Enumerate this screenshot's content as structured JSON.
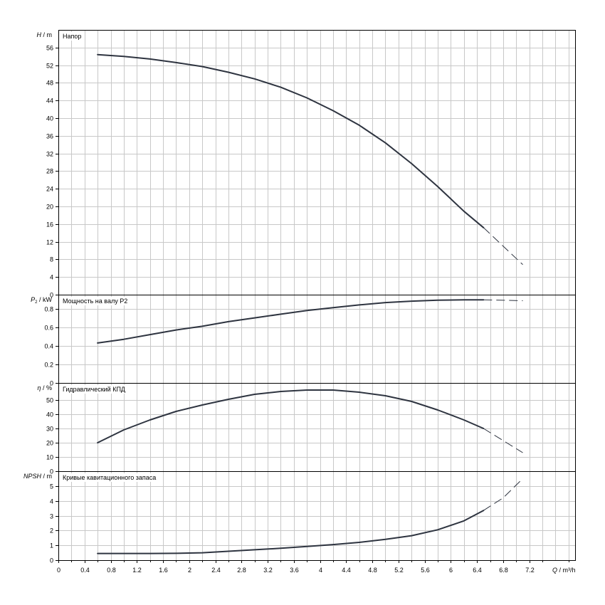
{
  "chart_data": {
    "type": "line",
    "x_axis": {
      "label_symbol": "Q",
      "label_unit": "/ m³/h",
      "range": [
        0,
        7.9
      ],
      "ticks": [
        0,
        0.4,
        0.8,
        1.2,
        1.6,
        2,
        2.4,
        2.8,
        3.2,
        3.6,
        4,
        4.4,
        4.8,
        5.2,
        5.6,
        6,
        6.4,
        6.8,
        7.2
      ],
      "tick_labels": [
        "0",
        "0.4",
        "0.8",
        "1.2",
        "1.6",
        "2",
        "2.4",
        "2.8",
        "3.2",
        "3.6",
        "4",
        "4.4",
        "4.8",
        "5.2",
        "5.6",
        "6",
        "6.4",
        "6.8",
        "7.2"
      ]
    },
    "panels": [
      {
        "name": "head",
        "title": "Напор",
        "ylabel_symbol": "H",
        "ylabel_unit": "/ m",
        "ylim": [
          0,
          60
        ],
        "yticks": [
          0,
          4,
          8,
          12,
          16,
          20,
          24,
          28,
          32,
          36,
          40,
          44,
          48,
          52,
          56
        ],
        "ytick_labels": [
          "0",
          "4",
          "8",
          "12",
          "16",
          "20",
          "24",
          "28",
          "32",
          "36",
          "40",
          "44",
          "48",
          "52",
          "56"
        ],
        "solid": {
          "x": [
            0.6,
            1.0,
            1.4,
            1.8,
            2.2,
            2.6,
            3.0,
            3.4,
            3.8,
            4.2,
            4.6,
            5.0,
            5.4,
            5.8,
            6.2,
            6.5
          ],
          "y": [
            54.4,
            54.0,
            53.4,
            52.6,
            51.7,
            50.4,
            48.9,
            47.0,
            44.6,
            41.7,
            38.4,
            34.4,
            29.7,
            24.5,
            18.9,
            15.2
          ]
        },
        "dashed": {
          "x": [
            6.5,
            7.1
          ],
          "y": [
            15.2,
            6.8
          ]
        }
      },
      {
        "name": "power",
        "title": "Мощность на валу P2",
        "ylabel_symbol": "P",
        "ylabel_sub": "2",
        "ylabel_unit": "/ kW",
        "ylim": [
          0,
          0.95
        ],
        "yticks": [
          0,
          0.2,
          0.4,
          0.6,
          0.8
        ],
        "ytick_labels": [
          "0",
          "0.2",
          "0.4",
          "0.6",
          "0.8"
        ],
        "solid": {
          "x": [
            0.6,
            1.0,
            1.4,
            1.8,
            2.2,
            2.6,
            3.0,
            3.4,
            3.8,
            4.2,
            4.6,
            5.0,
            5.4,
            5.8,
            6.2,
            6.5
          ],
          "y": [
            0.43,
            0.47,
            0.52,
            0.57,
            0.61,
            0.66,
            0.7,
            0.74,
            0.78,
            0.81,
            0.84,
            0.865,
            0.88,
            0.89,
            0.895,
            0.895
          ]
        },
        "dashed": {
          "x": [
            6.5,
            7.1
          ],
          "y": [
            0.895,
            0.885
          ]
        }
      },
      {
        "name": "efficiency",
        "title": "Гидравлический КПД",
        "ylabel_symbol": "η",
        "ylabel_unit": "/ %",
        "ylim": [
          0,
          62
        ],
        "yticks": [
          0,
          10,
          20,
          30,
          40,
          50
        ],
        "ytick_labels": [
          "0",
          "10",
          "20",
          "30",
          "40",
          "50"
        ],
        "solid": {
          "x": [
            0.6,
            1.0,
            1.4,
            1.8,
            2.2,
            2.6,
            3.0,
            3.4,
            3.8,
            4.2,
            4.6,
            5.0,
            5.4,
            5.8,
            6.2,
            6.5
          ],
          "y": [
            20,
            29,
            36,
            42,
            46.5,
            50.5,
            54,
            56,
            57,
            57,
            55.5,
            53,
            49,
            43,
            36,
            30
          ]
        },
        "dashed": {
          "x": [
            6.5,
            7.1
          ],
          "y": [
            30,
            13
          ]
        }
      },
      {
        "name": "npsh",
        "title": "Кривые кавитационного запаса",
        "ylabel_symbol": "NPSH",
        "ylabel_unit": "/ m",
        "ylim": [
          0,
          6
        ],
        "yticks": [
          0,
          1,
          2,
          3,
          4,
          5
        ],
        "ytick_labels": [
          "0",
          "1",
          "2",
          "3",
          "4",
          "5"
        ],
        "solid": {
          "x": [
            0.6,
            1.0,
            1.4,
            1.8,
            2.2,
            2.6,
            3.0,
            3.4,
            3.8,
            4.2,
            4.6,
            5.0,
            5.4,
            5.8,
            6.2,
            6.5
          ],
          "y": [
            0.45,
            0.45,
            0.45,
            0.46,
            0.5,
            0.6,
            0.7,
            0.8,
            0.92,
            1.05,
            1.2,
            1.4,
            1.65,
            2.05,
            2.65,
            3.35
          ]
        },
        "dashed": {
          "x": [
            6.5,
            6.8,
            7.1
          ],
          "y": [
            3.35,
            4.2,
            5.5
          ]
        }
      }
    ],
    "grid": true,
    "legend": "none"
  }
}
